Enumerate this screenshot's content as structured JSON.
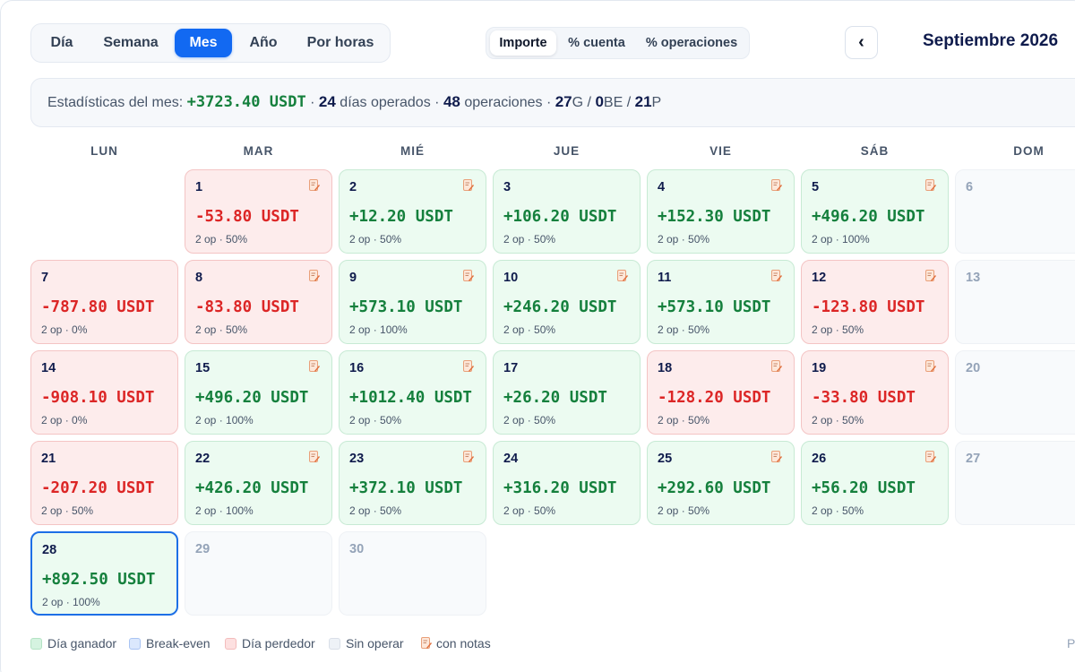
{
  "view_tabs": [
    "Día",
    "Semana",
    "Mes",
    "Año",
    "Por horas"
  ],
  "active_view": "Mes",
  "mode_tabs": [
    "Importe",
    "% cuenta",
    "% operaciones"
  ],
  "active_mode": "Importe",
  "nav": {
    "prev": "‹",
    "month_title": "Septiembre 2026"
  },
  "stats": {
    "label": "Estadísticas del mes:",
    "pnl": "+3723.40 USDT",
    "sep": "·",
    "days": "24",
    "days_label": "días operados",
    "ops": "48",
    "ops_label": "operaciones",
    "wins": "27",
    "wins_suffix": "G",
    "be": "0",
    "be_suffix": "BE",
    "losses": "21",
    "losses_suffix": "P",
    "slash": "/"
  },
  "weekdays": [
    "LUN",
    "MAR",
    "MIÉ",
    "JUE",
    "VIE",
    "SÁB",
    "DOM"
  ],
  "days": [
    {
      "day": "1",
      "status": "loss",
      "pnl": "-53.80 USDT",
      "meta": "2 op · 50%",
      "note": true
    },
    {
      "day": "2",
      "status": "win",
      "pnl": "+12.20 USDT",
      "meta": "2 op · 50%",
      "note": true
    },
    {
      "day": "3",
      "status": "win",
      "pnl": "+106.20 USDT",
      "meta": "2 op · 50%",
      "note": false
    },
    {
      "day": "4",
      "status": "win",
      "pnl": "+152.30 USDT",
      "meta": "2 op · 50%",
      "note": true
    },
    {
      "day": "5",
      "status": "win",
      "pnl": "+496.20 USDT",
      "meta": "2 op · 100%",
      "note": true
    },
    {
      "day": "6",
      "status": "empty"
    },
    {
      "day": "7",
      "status": "loss",
      "pnl": "-787.80 USDT",
      "meta": "2 op · 0%",
      "note": false
    },
    {
      "day": "8",
      "status": "loss",
      "pnl": "-83.80 USDT",
      "meta": "2 op · 50%",
      "note": true
    },
    {
      "day": "9",
      "status": "win",
      "pnl": "+573.10 USDT",
      "meta": "2 op · 100%",
      "note": true
    },
    {
      "day": "10",
      "status": "win",
      "pnl": "+246.20 USDT",
      "meta": "2 op · 50%",
      "note": true
    },
    {
      "day": "11",
      "status": "win",
      "pnl": "+573.10 USDT",
      "meta": "2 op · 50%",
      "note": true
    },
    {
      "day": "12",
      "status": "loss",
      "pnl": "-123.80 USDT",
      "meta": "2 op · 50%",
      "note": true
    },
    {
      "day": "13",
      "status": "empty"
    },
    {
      "day": "14",
      "status": "loss",
      "pnl": "-908.10 USDT",
      "meta": "2 op · 0%",
      "note": false
    },
    {
      "day": "15",
      "status": "win",
      "pnl": "+496.20 USDT",
      "meta": "2 op · 100%",
      "note": true
    },
    {
      "day": "16",
      "status": "win",
      "pnl": "+1012.40 USDT",
      "meta": "2 op · 50%",
      "note": true
    },
    {
      "day": "17",
      "status": "win",
      "pnl": "+26.20 USDT",
      "meta": "2 op · 50%",
      "note": false
    },
    {
      "day": "18",
      "status": "loss",
      "pnl": "-128.20 USDT",
      "meta": "2 op · 50%",
      "note": true
    },
    {
      "day": "19",
      "status": "loss",
      "pnl": "-33.80 USDT",
      "meta": "2 op · 50%",
      "note": true
    },
    {
      "day": "20",
      "status": "empty"
    },
    {
      "day": "21",
      "status": "loss",
      "pnl": "-207.20 USDT",
      "meta": "2 op · 50%",
      "note": false
    },
    {
      "day": "22",
      "status": "win",
      "pnl": "+426.20 USDT",
      "meta": "2 op · 100%",
      "note": true
    },
    {
      "day": "23",
      "status": "win",
      "pnl": "+372.10 USDT",
      "meta": "2 op · 50%",
      "note": true
    },
    {
      "day": "24",
      "status": "win",
      "pnl": "+316.20 USDT",
      "meta": "2 op · 50%",
      "note": false
    },
    {
      "day": "25",
      "status": "win",
      "pnl": "+292.60 USDT",
      "meta": "2 op · 50%",
      "note": true
    },
    {
      "day": "26",
      "status": "win",
      "pnl": "+56.20 USDT",
      "meta": "2 op · 50%",
      "note": true
    },
    {
      "day": "27",
      "status": "empty"
    },
    {
      "day": "28",
      "status": "win",
      "pnl": "+892.50 USDT",
      "meta": "2 op · 100%",
      "note": false,
      "today": true
    },
    {
      "day": "29",
      "status": "empty"
    },
    {
      "day": "30",
      "status": "empty"
    }
  ],
  "legend": {
    "win": "Día ganador",
    "be": "Break-even",
    "loss": "Día perdedor",
    "none": "Sin operar",
    "notes": "con notas"
  },
  "edge_text": "P",
  "colors": {
    "accent": "#1269f2",
    "win_text": "#15803d",
    "loss_text": "#dc2626",
    "win_bg": "#ecfbf1",
    "loss_bg": "#fdecec",
    "be_text": "#2563eb"
  },
  "icons": {
    "note": "note-pencil-icon",
    "prev": "chevron-left-icon"
  }
}
